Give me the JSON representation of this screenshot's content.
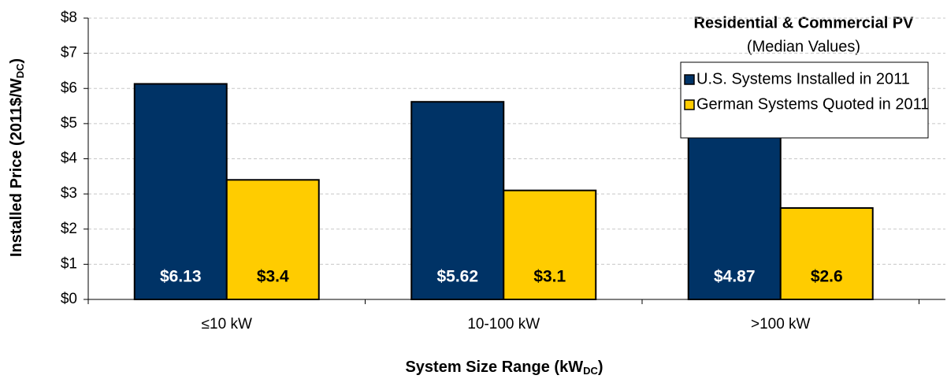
{
  "chart_data": {
    "type": "bar",
    "legend_title": "Residential & Commercial PV",
    "legend_subtitle": "(Median Values)",
    "x_label": [
      "System Size Range (kW",
      "DC",
      ")"
    ],
    "y_label": [
      "Installed Price (2011$/W",
      "DC",
      ")"
    ],
    "categories": [
      "≤10 kW",
      "10-100 kW",
      ">100 kW"
    ],
    "series": [
      {
        "name": "U.S. Systems Installed in 2011",
        "color": "#003366",
        "values": [
          6.13,
          5.62,
          4.87
        ],
        "value_labels": [
          "$6.13",
          "$5.62",
          "$4.87"
        ]
      },
      {
        "name": "German Systems Quoted in 2011",
        "color": "#ffcc00",
        "values": [
          3.4,
          3.1,
          2.6
        ],
        "value_labels": [
          "$3.4",
          "$3.1",
          "$2.6"
        ]
      }
    ],
    "ylim": [
      0,
      8
    ],
    "yticks": [
      {
        "value": 0,
        "label": "$0"
      },
      {
        "value": 1,
        "label": "$1"
      },
      {
        "value": 2,
        "label": "$2"
      },
      {
        "value": 3,
        "label": "$3"
      },
      {
        "value": 4,
        "label": "$4"
      },
      {
        "value": 5,
        "label": "$5"
      },
      {
        "value": 6,
        "label": "$6"
      },
      {
        "value": 7,
        "label": "$7"
      },
      {
        "value": 8,
        "label": "$8"
      }
    ],
    "grid": true,
    "legend": "upper right"
  }
}
